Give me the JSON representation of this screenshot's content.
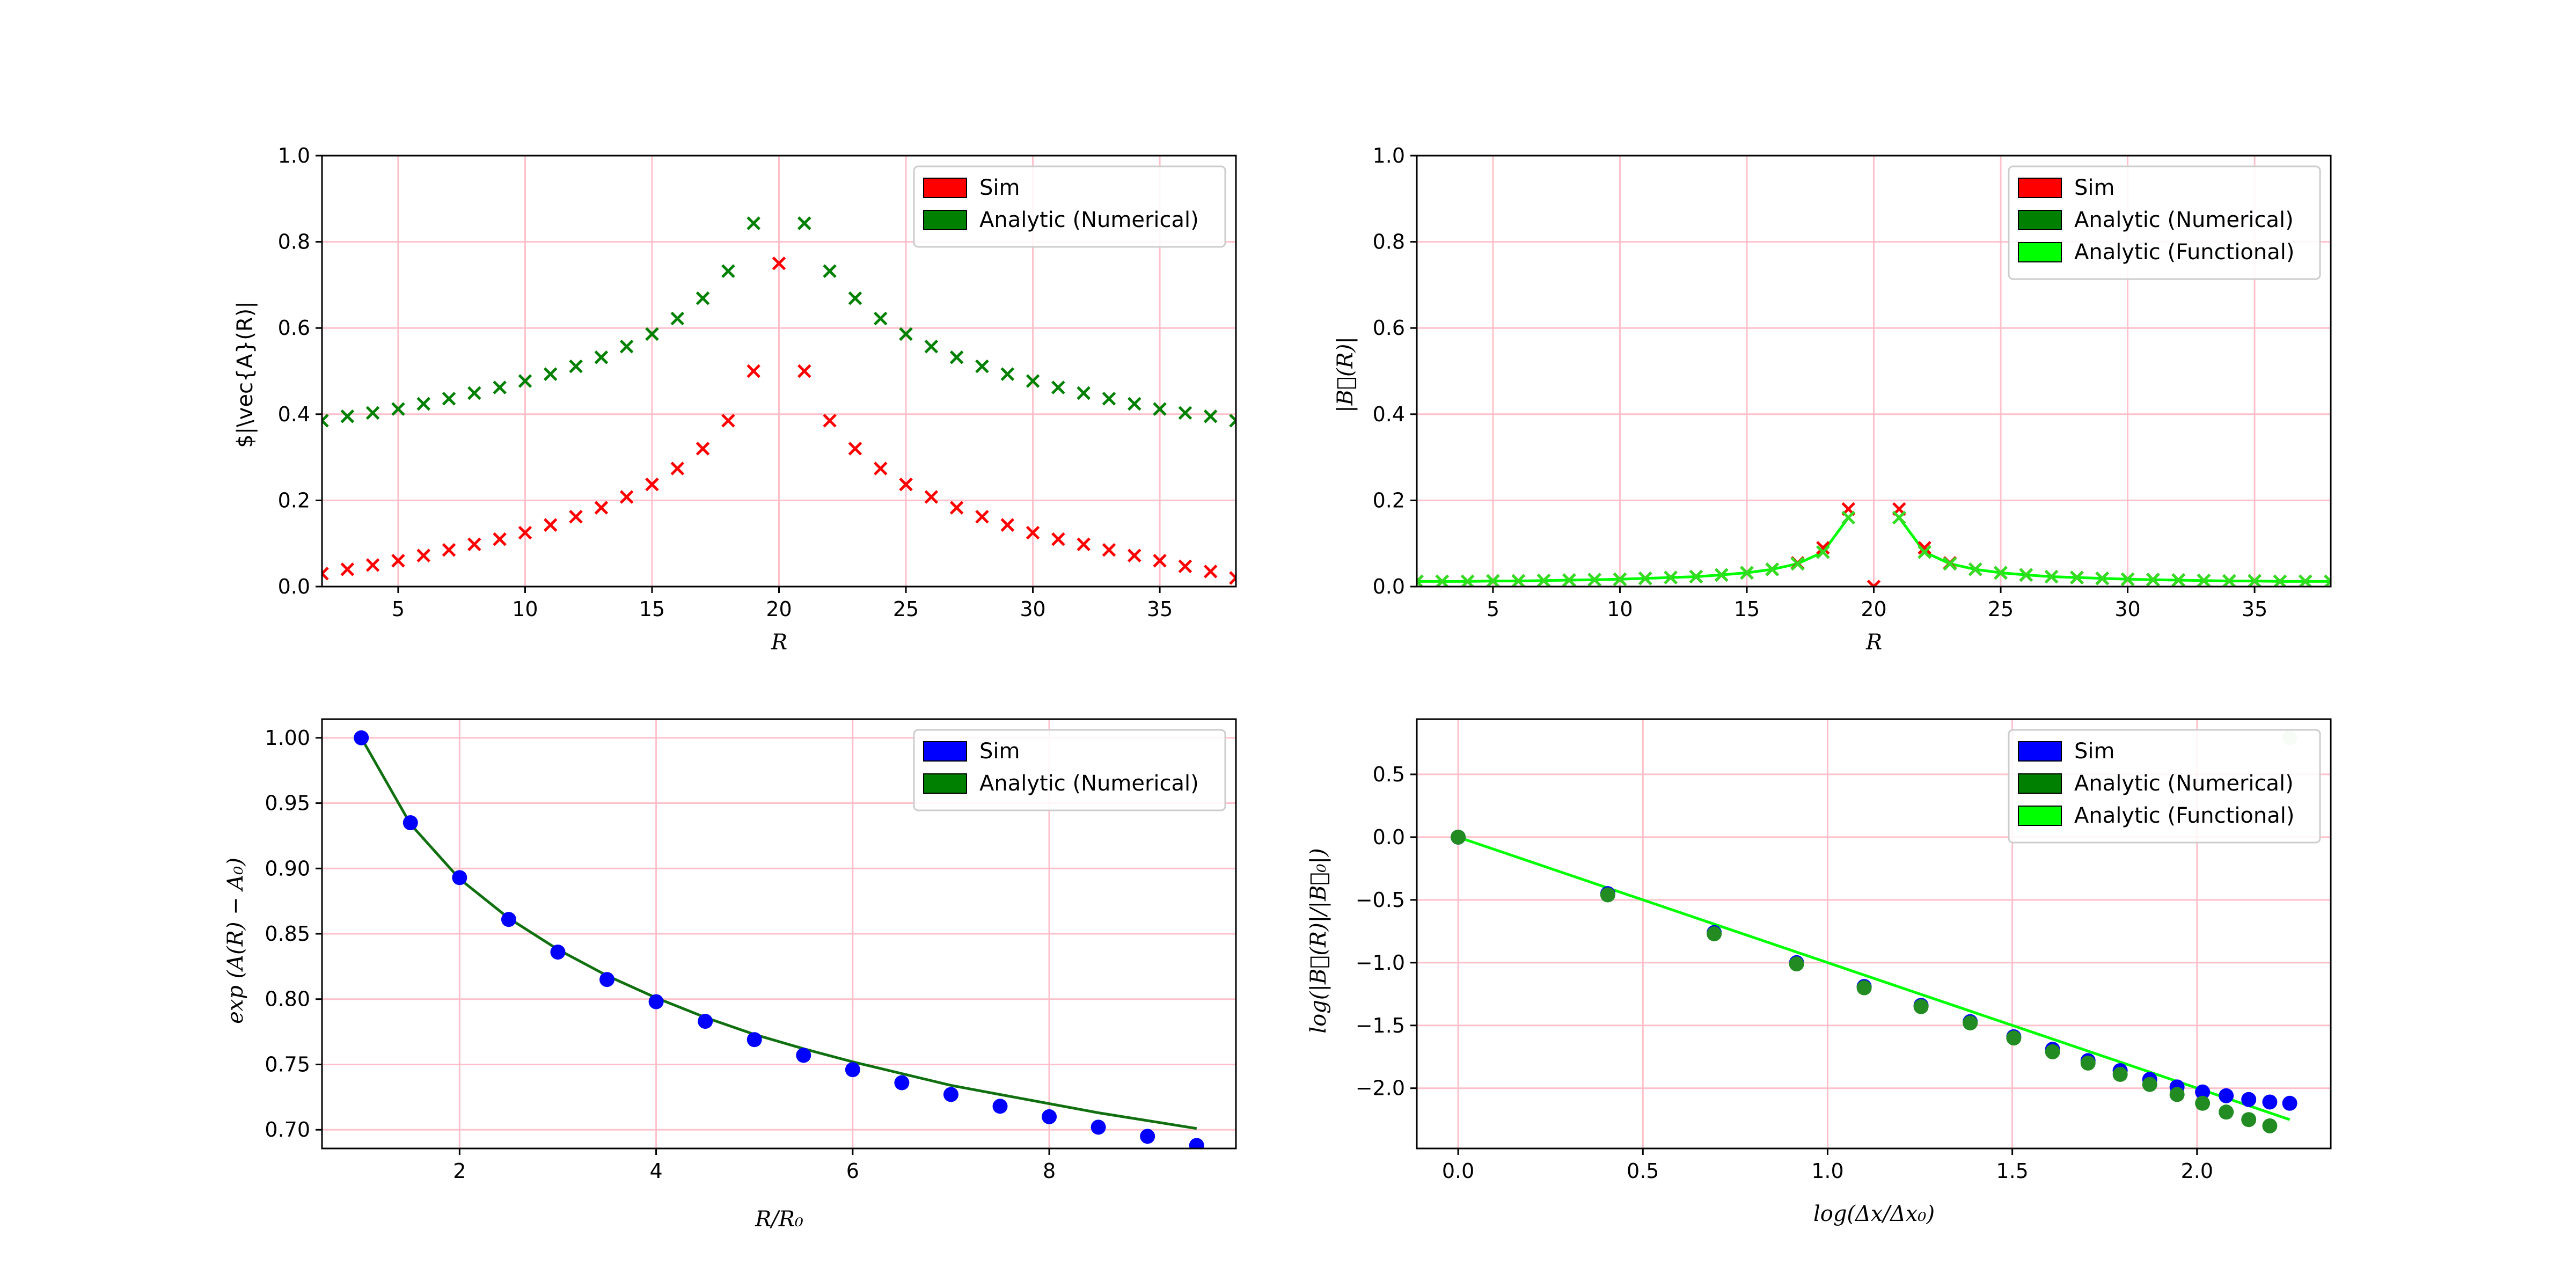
{
  "chart_data": [
    {
      "type": "scatter",
      "xlabel": "R",
      "ylabel": "$|\\vec{A}(R)|",
      "xlim": [
        2,
        38
      ],
      "ylim": [
        0,
        1.0
      ],
      "xticks": [
        "5",
        "10",
        "15",
        "20",
        "25",
        "30",
        "35"
      ],
      "xtick_values": [
        5,
        10,
        15,
        20,
        25,
        30,
        35
      ],
      "yticks": [
        "0.0",
        "0.2",
        "0.4",
        "0.6",
        "0.8",
        "1.0"
      ],
      "ytick_values": [
        0,
        0.2,
        0.4,
        0.6,
        0.8,
        1.0
      ],
      "grid": true,
      "grid_color": "#ffc0cb",
      "legend_position": "upper right",
      "legend": [
        {
          "label": "Sim",
          "color": "#ff0000"
        },
        {
          "label": "Analytic (Numerical)",
          "color": "#008000"
        }
      ],
      "series": [
        {
          "name": "Sim",
          "marker": "x",
          "color": "#ff0000",
          "x": [
            2,
            3,
            4,
            5,
            6,
            7,
            8,
            9,
            10,
            11,
            12,
            13,
            14,
            15,
            16,
            17,
            18,
            19,
            21,
            22,
            23,
            24,
            25,
            26,
            27,
            28,
            29,
            30,
            31,
            32,
            33,
            34,
            35,
            36,
            37,
            38
          ],
          "y": [
            0.03,
            0.04,
            0.05,
            0.06,
            0.072,
            0.085,
            0.098,
            0.11,
            0.125,
            0.143,
            0.162,
            0.183,
            0.208,
            0.237,
            0.274,
            0.32,
            0.385,
            0.5,
            0.5,
            0.385,
            0.32,
            0.274,
            0.237,
            0.208,
            0.183,
            0.162,
            0.143,
            0.125,
            0.11,
            0.098,
            0.085,
            0.072,
            0.06,
            0.047,
            0.035,
            0.02
          ]
        },
        {
          "name": "Sim (midpoint)",
          "marker": "x",
          "color": "#ff0000",
          "x": [
            20
          ],
          "y": [
            0.75
          ]
        },
        {
          "name": "Analytic (Numerical)",
          "marker": "x",
          "color": "#008000",
          "x": [
            2,
            3,
            4,
            5,
            6,
            7,
            8,
            9,
            10,
            11,
            12,
            13,
            14,
            15,
            16,
            17,
            18,
            19,
            21,
            22,
            23,
            24,
            25,
            26,
            27,
            28,
            29,
            30,
            31,
            32,
            33,
            34,
            35,
            36,
            37,
            38
          ],
          "y": [
            0.385,
            0.395,
            0.403,
            0.412,
            0.424,
            0.436,
            0.449,
            0.462,
            0.477,
            0.493,
            0.511,
            0.532,
            0.557,
            0.586,
            0.622,
            0.669,
            0.732,
            0.843,
            0.843,
            0.732,
            0.669,
            0.622,
            0.586,
            0.557,
            0.532,
            0.511,
            0.493,
            0.477,
            0.462,
            0.449,
            0.436,
            0.424,
            0.412,
            0.403,
            0.395,
            0.385
          ]
        }
      ]
    },
    {
      "type": "scatter",
      "xlabel": "R",
      "ylabel": "|B⃗(R)|",
      "xlim": [
        2,
        38
      ],
      "ylim": [
        0,
        1.0
      ],
      "xticks": [
        "5",
        "10",
        "15",
        "20",
        "25",
        "30",
        "35"
      ],
      "xtick_values": [
        5,
        10,
        15,
        20,
        25,
        30,
        35
      ],
      "yticks": [
        "0.0",
        "0.2",
        "0.4",
        "0.6",
        "0.8",
        "1.0"
      ],
      "ytick_values": [
        0,
        0.2,
        0.4,
        0.6,
        0.8,
        1.0
      ],
      "grid": true,
      "grid_color": "#ffc0cb",
      "legend_position": "upper right",
      "legend": [
        {
          "label": "Sim",
          "color": "#ff0000"
        },
        {
          "label": "Analytic (Numerical)",
          "color": "#008000"
        },
        {
          "label": "Analytic (Functional)",
          "color": "#00ff00"
        }
      ],
      "series": [
        {
          "name": "Sim",
          "marker": "x",
          "color": "#ff0000",
          "x": [
            2,
            3,
            4,
            5,
            6,
            7,
            8,
            9,
            10,
            11,
            12,
            13,
            14,
            15,
            16,
            17,
            18,
            19,
            20,
            21,
            22,
            23,
            24,
            25,
            26,
            27,
            28,
            29,
            30,
            31,
            32,
            33,
            34,
            35,
            36,
            37,
            38
          ],
          "y": [
            0.012,
            0.012,
            0.012,
            0.013,
            0.013,
            0.014,
            0.015,
            0.016,
            0.017,
            0.019,
            0.021,
            0.023,
            0.027,
            0.032,
            0.04,
            0.055,
            0.09,
            0.18,
            0.0,
            0.18,
            0.09,
            0.055,
            0.04,
            0.032,
            0.027,
            0.023,
            0.021,
            0.019,
            0.017,
            0.016,
            0.015,
            0.014,
            0.013,
            0.013,
            0.012,
            0.012,
            0.012
          ]
        },
        {
          "name": "Analytic (Numerical)",
          "marker": "x",
          "color": "#008000",
          "x": [
            2,
            3,
            4,
            5,
            6,
            7,
            8,
            9,
            10,
            11,
            12,
            13,
            14,
            15,
            16,
            17,
            18,
            19,
            21,
            22,
            23,
            24,
            25,
            26,
            27,
            28,
            29,
            30,
            31,
            32,
            33,
            34,
            35,
            36,
            37,
            38
          ],
          "y": [
            0.012,
            0.012,
            0.012,
            0.013,
            0.013,
            0.014,
            0.015,
            0.016,
            0.017,
            0.019,
            0.021,
            0.023,
            0.027,
            0.032,
            0.04,
            0.053,
            0.08,
            0.16,
            0.16,
            0.08,
            0.053,
            0.04,
            0.032,
            0.027,
            0.023,
            0.021,
            0.019,
            0.017,
            0.016,
            0.015,
            0.014,
            0.013,
            0.013,
            0.012,
            0.012,
            0.012
          ]
        },
        {
          "name": "Analytic (Functional)",
          "marker": "x",
          "color": "#33dd22",
          "x": [
            2,
            3,
            4,
            5,
            6,
            7,
            8,
            9,
            10,
            11,
            12,
            13,
            14,
            15,
            16,
            17,
            18,
            19,
            21,
            22,
            23,
            24,
            25,
            26,
            27,
            28,
            29,
            30,
            31,
            32,
            33,
            34,
            35,
            36,
            37,
            38
          ],
          "y": [
            0.012,
            0.012,
            0.012,
            0.013,
            0.013,
            0.014,
            0.015,
            0.016,
            0.017,
            0.019,
            0.021,
            0.023,
            0.027,
            0.032,
            0.04,
            0.053,
            0.08,
            0.16,
            0.16,
            0.08,
            0.053,
            0.04,
            0.032,
            0.027,
            0.023,
            0.021,
            0.019,
            0.017,
            0.016,
            0.015,
            0.014,
            0.013,
            0.013,
            0.012,
            0.012,
            0.012
          ]
        }
      ],
      "lines": [
        {
          "name": "Analytic (Functional)",
          "color": "#00ff00",
          "segments": [
            {
              "x": [
                2,
                3,
                4,
                5,
                6,
                7,
                8,
                9,
                10,
                11,
                12,
                13,
                14,
                15,
                16,
                17,
                18,
                19
              ],
              "y": [
                0.012,
                0.012,
                0.012,
                0.013,
                0.013,
                0.014,
                0.015,
                0.016,
                0.017,
                0.019,
                0.021,
                0.023,
                0.027,
                0.032,
                0.04,
                0.053,
                0.08,
                0.16
              ]
            },
            {
              "x": [
                21,
                22,
                23,
                24,
                25,
                26,
                27,
                28,
                29,
                30,
                31,
                32,
                33,
                34,
                35,
                36,
                37,
                38
              ],
              "y": [
                0.16,
                0.08,
                0.053,
                0.04,
                0.032,
                0.027,
                0.023,
                0.021,
                0.019,
                0.017,
                0.016,
                0.015,
                0.014,
                0.013,
                0.013,
                0.012,
                0.012,
                0.012
              ]
            }
          ]
        }
      ]
    },
    {
      "type": "scatter",
      "xlabel": "R/R₀",
      "ylabel": "exp (A(R) − A₀)",
      "xlim": [
        0.6,
        9.9
      ],
      "ylim": [
        0.6857,
        1.0143
      ],
      "xticks": [
        "2",
        "4",
        "6",
        "8"
      ],
      "xtick_values": [
        2,
        4,
        6,
        8
      ],
      "yticks": [
        "0.70",
        "0.75",
        "0.80",
        "0.85",
        "0.90",
        "0.95",
        "1.00"
      ],
      "ytick_values": [
        0.7,
        0.75,
        0.8,
        0.85,
        0.9,
        0.95,
        1.0
      ],
      "grid": true,
      "grid_color": "#ffc0cb",
      "legend_position": "upper right",
      "legend": [
        {
          "label": "Sim",
          "color": "#0000ff"
        },
        {
          "label": "Analytic (Numerical)",
          "color": "#008000"
        }
      ],
      "series": [
        {
          "name": "Sim",
          "marker": "o",
          "color": "#0000ff",
          "x": [
            1,
            1.5,
            2,
            2.5,
            3,
            3.5,
            4,
            4.5,
            5,
            5.5,
            6,
            6.5,
            7,
            7.5,
            8,
            8.5,
            9,
            9.5
          ],
          "y": [
            1.0,
            0.935,
            0.893,
            0.861,
            0.836,
            0.815,
            0.798,
            0.783,
            0.769,
            0.757,
            0.746,
            0.736,
            0.727,
            0.718,
            0.71,
            0.702,
            0.695,
            0.688
          ]
        }
      ],
      "lines": [
        {
          "name": "Analytic (Numerical)",
          "color": "#107010",
          "segments": [
            {
              "x": [
                1,
                1.5,
                2,
                2.5,
                3,
                3.5,
                4,
                4.5,
                5,
                5.5,
                6,
                6.5,
                7,
                7.5,
                8,
                8.5,
                9,
                9.5
              ],
              "y": [
                1.0,
                0.934,
                0.892,
                0.862,
                0.838,
                0.818,
                0.801,
                0.786,
                0.773,
                0.762,
                0.752,
                0.743,
                0.734,
                0.727,
                0.72,
                0.713,
                0.707,
                0.701
              ]
            }
          ]
        }
      ]
    },
    {
      "type": "scatter",
      "xlabel": "log(Δx/Δx₀)",
      "ylabel": "log(|B⃗(R)|/|B⃗₀|)",
      "xlim": [
        -0.112,
        2.362
      ],
      "ylim": [
        -2.48,
        0.94
      ],
      "xticks": [
        "0.0",
        "0.5",
        "1.0",
        "1.5",
        "2.0"
      ],
      "xtick_values": [
        0,
        0.5,
        1.0,
        1.5,
        2.0
      ],
      "yticks": [
        "−2.0",
        "−1.5",
        "−1.0",
        "−0.5",
        "0.0",
        "0.5"
      ],
      "ytick_values": [
        -2.0,
        -1.5,
        -1.0,
        -0.5,
        0.0,
        0.5
      ],
      "grid": true,
      "grid_color": "#ffc0cb",
      "legend_position": "upper right",
      "legend": [
        {
          "label": "Sim",
          "color": "#0000ff"
        },
        {
          "label": "Analytic (Numerical)",
          "color": "#008000"
        },
        {
          "label": "Analytic (Functional)",
          "color": "#00ff00"
        }
      ],
      "series": [
        {
          "name": "Sim",
          "marker": "o",
          "color": "#0000ff",
          "x": [
            0,
            0.405,
            0.693,
            0.916,
            1.099,
            1.253,
            1.386,
            1.504,
            1.609,
            1.705,
            1.792,
            1.872,
            1.946,
            2.015,
            2.079,
            2.14,
            2.197,
            2.251
          ],
          "y": [
            0,
            -0.45,
            -0.76,
            -1.0,
            -1.19,
            -1.34,
            -1.47,
            -1.59,
            -1.69,
            -1.78,
            -1.86,
            -1.93,
            -1.99,
            -2.03,
            -2.06,
            -2.09,
            -2.11,
            -2.12
          ]
        },
        {
          "name": "Analytic (Numerical)",
          "marker": "o",
          "color": "#228b22",
          "x": [
            0,
            0.405,
            0.693,
            0.916,
            1.099,
            1.253,
            1.386,
            1.504,
            1.609,
            1.705,
            1.792,
            1.872,
            1.946,
            2.015,
            2.079,
            2.14,
            2.197
          ],
          "y": [
            0,
            -0.46,
            -0.77,
            -1.01,
            -1.2,
            -1.35,
            -1.48,
            -1.6,
            -1.71,
            -1.8,
            -1.89,
            -1.97,
            -2.05,
            -2.12,
            -2.19,
            -2.25,
            -2.3
          ]
        },
        {
          "name": "Analytic (Functional) outlier",
          "marker": "o",
          "color": "#c8e6c8",
          "x": [
            2.251
          ],
          "y": [
            0.79
          ]
        }
      ],
      "lines": [
        {
          "name": "Analytic (Functional)",
          "color": "#00ff00",
          "segments": [
            {
              "x": [
                0,
                2.251
              ],
              "y": [
                0,
                -2.25
              ]
            }
          ]
        }
      ]
    }
  ]
}
